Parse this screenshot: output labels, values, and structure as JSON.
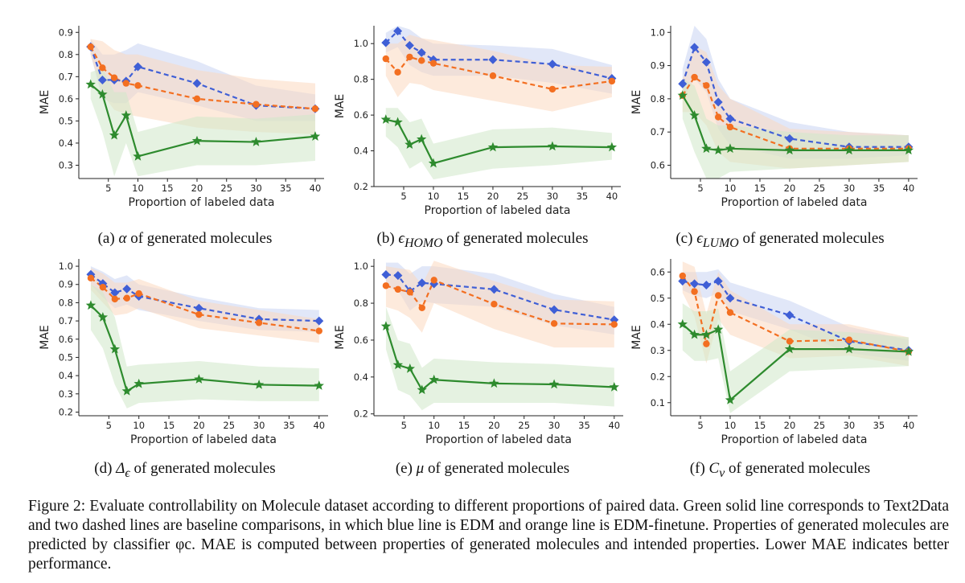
{
  "figure": {
    "caption_label": "Figure 2:",
    "caption_text": "Evaluate controllability on Molecule dataset according to different proportions of paired data. Green solid line corresponds to Text2Data and two dashed lines are baseline comparisons, in which blue line is EDM and orange line is EDM-finetune. Properties of generated molecules are predicted by classifier φc. MAE is computed between properties of generated molecules and intended properties. Lower MAE indicates better performance."
  },
  "colors": {
    "edm": "#3f5fd6",
    "edm_finetune": "#f36f21",
    "text2data": "#2e8b2e",
    "edm_band": "#c9d4f3",
    "finetune_band": "#fcd9bf",
    "text2data_band": "#cfe8c8"
  },
  "chart_data": [
    {
      "type": "line",
      "caption_prefix": "(a)",
      "caption_symbol": "α",
      "caption_suffix": "of generated molecules",
      "xlabel": "Proportion of labeled data",
      "ylabel": "MAE",
      "xlim": [
        0,
        41.5
      ],
      "ylim": [
        0.24,
        0.93
      ],
      "xticks": [
        5,
        10,
        15,
        20,
        25,
        30,
        35,
        40
      ],
      "yticks": [
        0.3,
        0.4,
        0.5,
        0.6,
        0.7,
        0.8,
        0.9
      ],
      "x": [
        2,
        4,
        6,
        8,
        10,
        20,
        30,
        40
      ],
      "series": [
        {
          "name": "EDM",
          "values": [
            0.835,
            0.685,
            0.685,
            0.68,
            0.745,
            0.67,
            0.57,
            0.555
          ],
          "lower": [
            0.8,
            0.6,
            0.58,
            0.58,
            0.63,
            0.57,
            0.5,
            0.5
          ],
          "upper": [
            0.87,
            0.8,
            0.8,
            0.82,
            0.85,
            0.77,
            0.66,
            0.62
          ]
        },
        {
          "name": "EDM-finetune",
          "values": [
            0.835,
            0.74,
            0.695,
            0.67,
            0.66,
            0.6,
            0.575,
            0.555
          ],
          "lower": [
            0.8,
            0.62,
            0.55,
            0.53,
            0.52,
            0.47,
            0.45,
            0.44
          ],
          "upper": [
            0.87,
            0.86,
            0.82,
            0.8,
            0.8,
            0.73,
            0.69,
            0.67
          ]
        },
        {
          "name": "Text2Data",
          "values": [
            0.665,
            0.62,
            0.435,
            0.525,
            0.34,
            0.41,
            0.405,
            0.43
          ],
          "lower": [
            0.6,
            0.45,
            0.25,
            0.4,
            0.25,
            0.3,
            0.3,
            0.32
          ],
          "upper": [
            0.72,
            0.74,
            0.63,
            0.63,
            0.45,
            0.52,
            0.51,
            0.53
          ]
        }
      ]
    },
    {
      "type": "line",
      "caption_prefix": "(b)",
      "caption_symbol": "ϵ",
      "caption_sub": "HOMO",
      "caption_suffix": "of generated molecules",
      "xlabel": "Proportion of labeled data",
      "ylabel": "MAE",
      "xlim": [
        0,
        41.5
      ],
      "ylim": [
        0.2,
        1.1
      ],
      "xticks": [
        5,
        10,
        15,
        20,
        25,
        30,
        35,
        40
      ],
      "yticks": [
        0.2,
        0.4,
        0.6,
        0.8,
        1.0
      ],
      "x": [
        2,
        4,
        6,
        8,
        10,
        20,
        30,
        40
      ],
      "series": [
        {
          "name": "EDM",
          "values": [
            1.005,
            1.07,
            0.99,
            0.95,
            0.91,
            0.91,
            0.885,
            0.805
          ],
          "lower": [
            0.95,
            0.98,
            0.88,
            0.84,
            0.82,
            0.82,
            0.78,
            0.72
          ],
          "upper": [
            1.06,
            1.1,
            1.08,
            1.03,
            1.0,
            0.99,
            0.97,
            0.88
          ]
        },
        {
          "name": "EDM-finetune",
          "values": [
            0.915,
            0.84,
            0.925,
            0.905,
            0.89,
            0.82,
            0.745,
            0.79
          ],
          "lower": [
            0.82,
            0.7,
            0.78,
            0.77,
            0.74,
            0.68,
            0.62,
            0.7
          ],
          "upper": [
            1.0,
            1.0,
            1.05,
            1.03,
            1.02,
            0.96,
            0.88,
            0.87
          ]
        },
        {
          "name": "Text2Data",
          "values": [
            0.575,
            0.56,
            0.435,
            0.465,
            0.33,
            0.42,
            0.425,
            0.42
          ],
          "lower": [
            0.48,
            0.42,
            0.3,
            0.34,
            0.24,
            0.3,
            0.32,
            0.35
          ],
          "upper": [
            0.64,
            0.64,
            0.56,
            0.58,
            0.44,
            0.52,
            0.53,
            0.5
          ]
        }
      ]
    },
    {
      "type": "line",
      "caption_prefix": "(c)",
      "caption_symbol": "ϵ",
      "caption_sub": "LUMO",
      "caption_suffix": "of generated molecules",
      "xlabel": "Proportion of labeled data",
      "ylabel": "MAE",
      "xlim": [
        0,
        41.5
      ],
      "ylim": [
        0.56,
        1.02
      ],
      "xticks": [
        5,
        10,
        15,
        20,
        25,
        30,
        35,
        40
      ],
      "yticks": [
        0.6,
        0.7,
        0.8,
        0.9,
        1.0
      ],
      "x": [
        2,
        4,
        6,
        8,
        10,
        20,
        30,
        40
      ],
      "series": [
        {
          "name": "EDM",
          "values": [
            0.845,
            0.955,
            0.91,
            0.79,
            0.74,
            0.68,
            0.655,
            0.655
          ],
          "lower": [
            0.8,
            0.86,
            0.82,
            0.71,
            0.66,
            0.62,
            0.62,
            0.63
          ],
          "upper": [
            0.89,
            1.02,
            0.98,
            0.86,
            0.8,
            0.73,
            0.7,
            0.69
          ]
        },
        {
          "name": "EDM-finetune",
          "values": [
            0.81,
            0.865,
            0.84,
            0.745,
            0.715,
            0.65,
            0.65,
            0.65
          ],
          "lower": [
            0.76,
            0.76,
            0.72,
            0.64,
            0.61,
            0.59,
            0.6,
            0.61
          ],
          "upper": [
            0.86,
            0.96,
            0.94,
            0.84,
            0.8,
            0.71,
            0.7,
            0.69
          ]
        },
        {
          "name": "Text2Data",
          "values": [
            0.81,
            0.75,
            0.65,
            0.645,
            0.65,
            0.645,
            0.645,
            0.645
          ],
          "lower": [
            0.74,
            0.64,
            0.56,
            0.56,
            0.58,
            0.59,
            0.6,
            0.61
          ],
          "upper": [
            0.86,
            0.84,
            0.74,
            0.72,
            0.72,
            0.7,
            0.69,
            0.69
          ]
        }
      ]
    },
    {
      "type": "line",
      "caption_prefix": "(d)",
      "caption_symbol": "Δ",
      "caption_sub": "ϵ",
      "caption_suffix": "of generated molecules",
      "xlabel": "Proportion of labeled data",
      "ylabel": "MAE",
      "xlim": [
        0,
        41.5
      ],
      "ylim": [
        0.18,
        1.04
      ],
      "xticks": [
        5,
        10,
        15,
        20,
        25,
        30,
        35,
        40
      ],
      "yticks": [
        0.2,
        0.3,
        0.4,
        0.5,
        0.6,
        0.7,
        0.8,
        0.9,
        1.0
      ],
      "x": [
        2,
        4,
        6,
        8,
        10,
        20,
        30,
        40
      ],
      "series": [
        {
          "name": "EDM",
          "values": [
            0.955,
            0.905,
            0.855,
            0.875,
            0.835,
            0.77,
            0.71,
            0.7
          ],
          "lower": [
            0.9,
            0.83,
            0.77,
            0.79,
            0.76,
            0.7,
            0.65,
            0.64
          ],
          "upper": [
            1.0,
            0.97,
            0.93,
            0.95,
            0.9,
            0.83,
            0.77,
            0.76
          ]
        },
        {
          "name": "EDM-finetune",
          "values": [
            0.935,
            0.885,
            0.82,
            0.825,
            0.85,
            0.735,
            0.69,
            0.645
          ],
          "lower": [
            0.87,
            0.8,
            0.73,
            0.74,
            0.77,
            0.66,
            0.62,
            0.58
          ],
          "upper": [
            0.99,
            0.96,
            0.91,
            0.91,
            0.93,
            0.81,
            0.76,
            0.71
          ]
        },
        {
          "name": "Text2Data",
          "values": [
            0.785,
            0.72,
            0.545,
            0.315,
            0.355,
            0.38,
            0.35,
            0.345
          ],
          "lower": [
            0.65,
            0.55,
            0.35,
            0.22,
            0.25,
            0.27,
            0.26,
            0.26
          ],
          "upper": [
            0.9,
            0.86,
            0.72,
            0.45,
            0.46,
            0.48,
            0.45,
            0.44
          ]
        }
      ]
    },
    {
      "type": "line",
      "caption_prefix": "(e)",
      "caption_symbol": "μ",
      "caption_suffix": "of generated molecules",
      "xlabel": "Proportion of labeled data",
      "ylabel": "MAE",
      "xlim": [
        0,
        41.5
      ],
      "ylim": [
        0.19,
        1.04
      ],
      "xticks": [
        5,
        10,
        15,
        20,
        25,
        30,
        35,
        40
      ],
      "yticks": [
        0.2,
        0.4,
        0.6,
        0.8,
        1.0
      ],
      "x": [
        2,
        4,
        6,
        8,
        10,
        20,
        30,
        40
      ],
      "series": [
        {
          "name": "EDM",
          "values": [
            0.955,
            0.95,
            0.865,
            0.91,
            0.905,
            0.875,
            0.765,
            0.71
          ],
          "lower": [
            0.89,
            0.87,
            0.76,
            0.81,
            0.8,
            0.78,
            0.68,
            0.63
          ],
          "upper": [
            1.02,
            1.02,
            0.96,
            1.0,
            1.0,
            0.96,
            0.85,
            0.78
          ]
        },
        {
          "name": "EDM-finetune",
          "values": [
            0.895,
            0.875,
            0.86,
            0.775,
            0.925,
            0.795,
            0.69,
            0.685
          ],
          "lower": [
            0.78,
            0.76,
            0.72,
            0.64,
            0.8,
            0.66,
            0.56,
            0.56
          ],
          "upper": [
            1.0,
            0.99,
            0.98,
            0.9,
            1.03,
            0.92,
            0.82,
            0.81
          ]
        },
        {
          "name": "Text2Data",
          "values": [
            0.675,
            0.465,
            0.445,
            0.33,
            0.385,
            0.365,
            0.36,
            0.345
          ],
          "lower": [
            0.55,
            0.33,
            0.3,
            0.22,
            0.26,
            0.26,
            0.26,
            0.24
          ],
          "upper": [
            0.78,
            0.6,
            0.58,
            0.45,
            0.5,
            0.48,
            0.47,
            0.45
          ]
        }
      ]
    },
    {
      "type": "line",
      "caption_prefix": "(f)",
      "caption_symbol": "C",
      "caption_sub": "v",
      "caption_suffix": "of generated molecules",
      "xlabel": "Proportion of labeled data",
      "ylabel": "MAE",
      "xlim": [
        0,
        41.5
      ],
      "ylim": [
        0.05,
        0.65
      ],
      "xticks": [
        5,
        10,
        15,
        20,
        25,
        30,
        35,
        40
      ],
      "yticks": [
        0.1,
        0.2,
        0.3,
        0.4,
        0.5,
        0.6
      ],
      "x": [
        2,
        4,
        6,
        8,
        10,
        20,
        30,
        40
      ],
      "series": [
        {
          "name": "EDM",
          "values": [
            0.565,
            0.555,
            0.55,
            0.565,
            0.5,
            0.435,
            0.335,
            0.3
          ],
          "lower": [
            0.53,
            0.51,
            0.5,
            0.52,
            0.45,
            0.38,
            0.29,
            0.26
          ],
          "upper": [
            0.6,
            0.6,
            0.6,
            0.61,
            0.56,
            0.49,
            0.39,
            0.34
          ]
        },
        {
          "name": "EDM-finetune",
          "values": [
            0.585,
            0.525,
            0.325,
            0.51,
            0.445,
            0.335,
            0.34,
            0.295
          ],
          "lower": [
            0.52,
            0.43,
            0.25,
            0.42,
            0.36,
            0.27,
            0.28,
            0.24
          ],
          "upper": [
            0.64,
            0.62,
            0.44,
            0.6,
            0.53,
            0.4,
            0.4,
            0.35
          ]
        },
        {
          "name": "Text2Data",
          "values": [
            0.4,
            0.36,
            0.36,
            0.38,
            0.11,
            0.305,
            0.305,
            0.295
          ],
          "lower": [
            0.3,
            0.26,
            0.26,
            0.27,
            0.06,
            0.22,
            0.23,
            0.24
          ],
          "upper": [
            0.48,
            0.45,
            0.45,
            0.46,
            0.22,
            0.38,
            0.37,
            0.35
          ]
        }
      ]
    }
  ]
}
